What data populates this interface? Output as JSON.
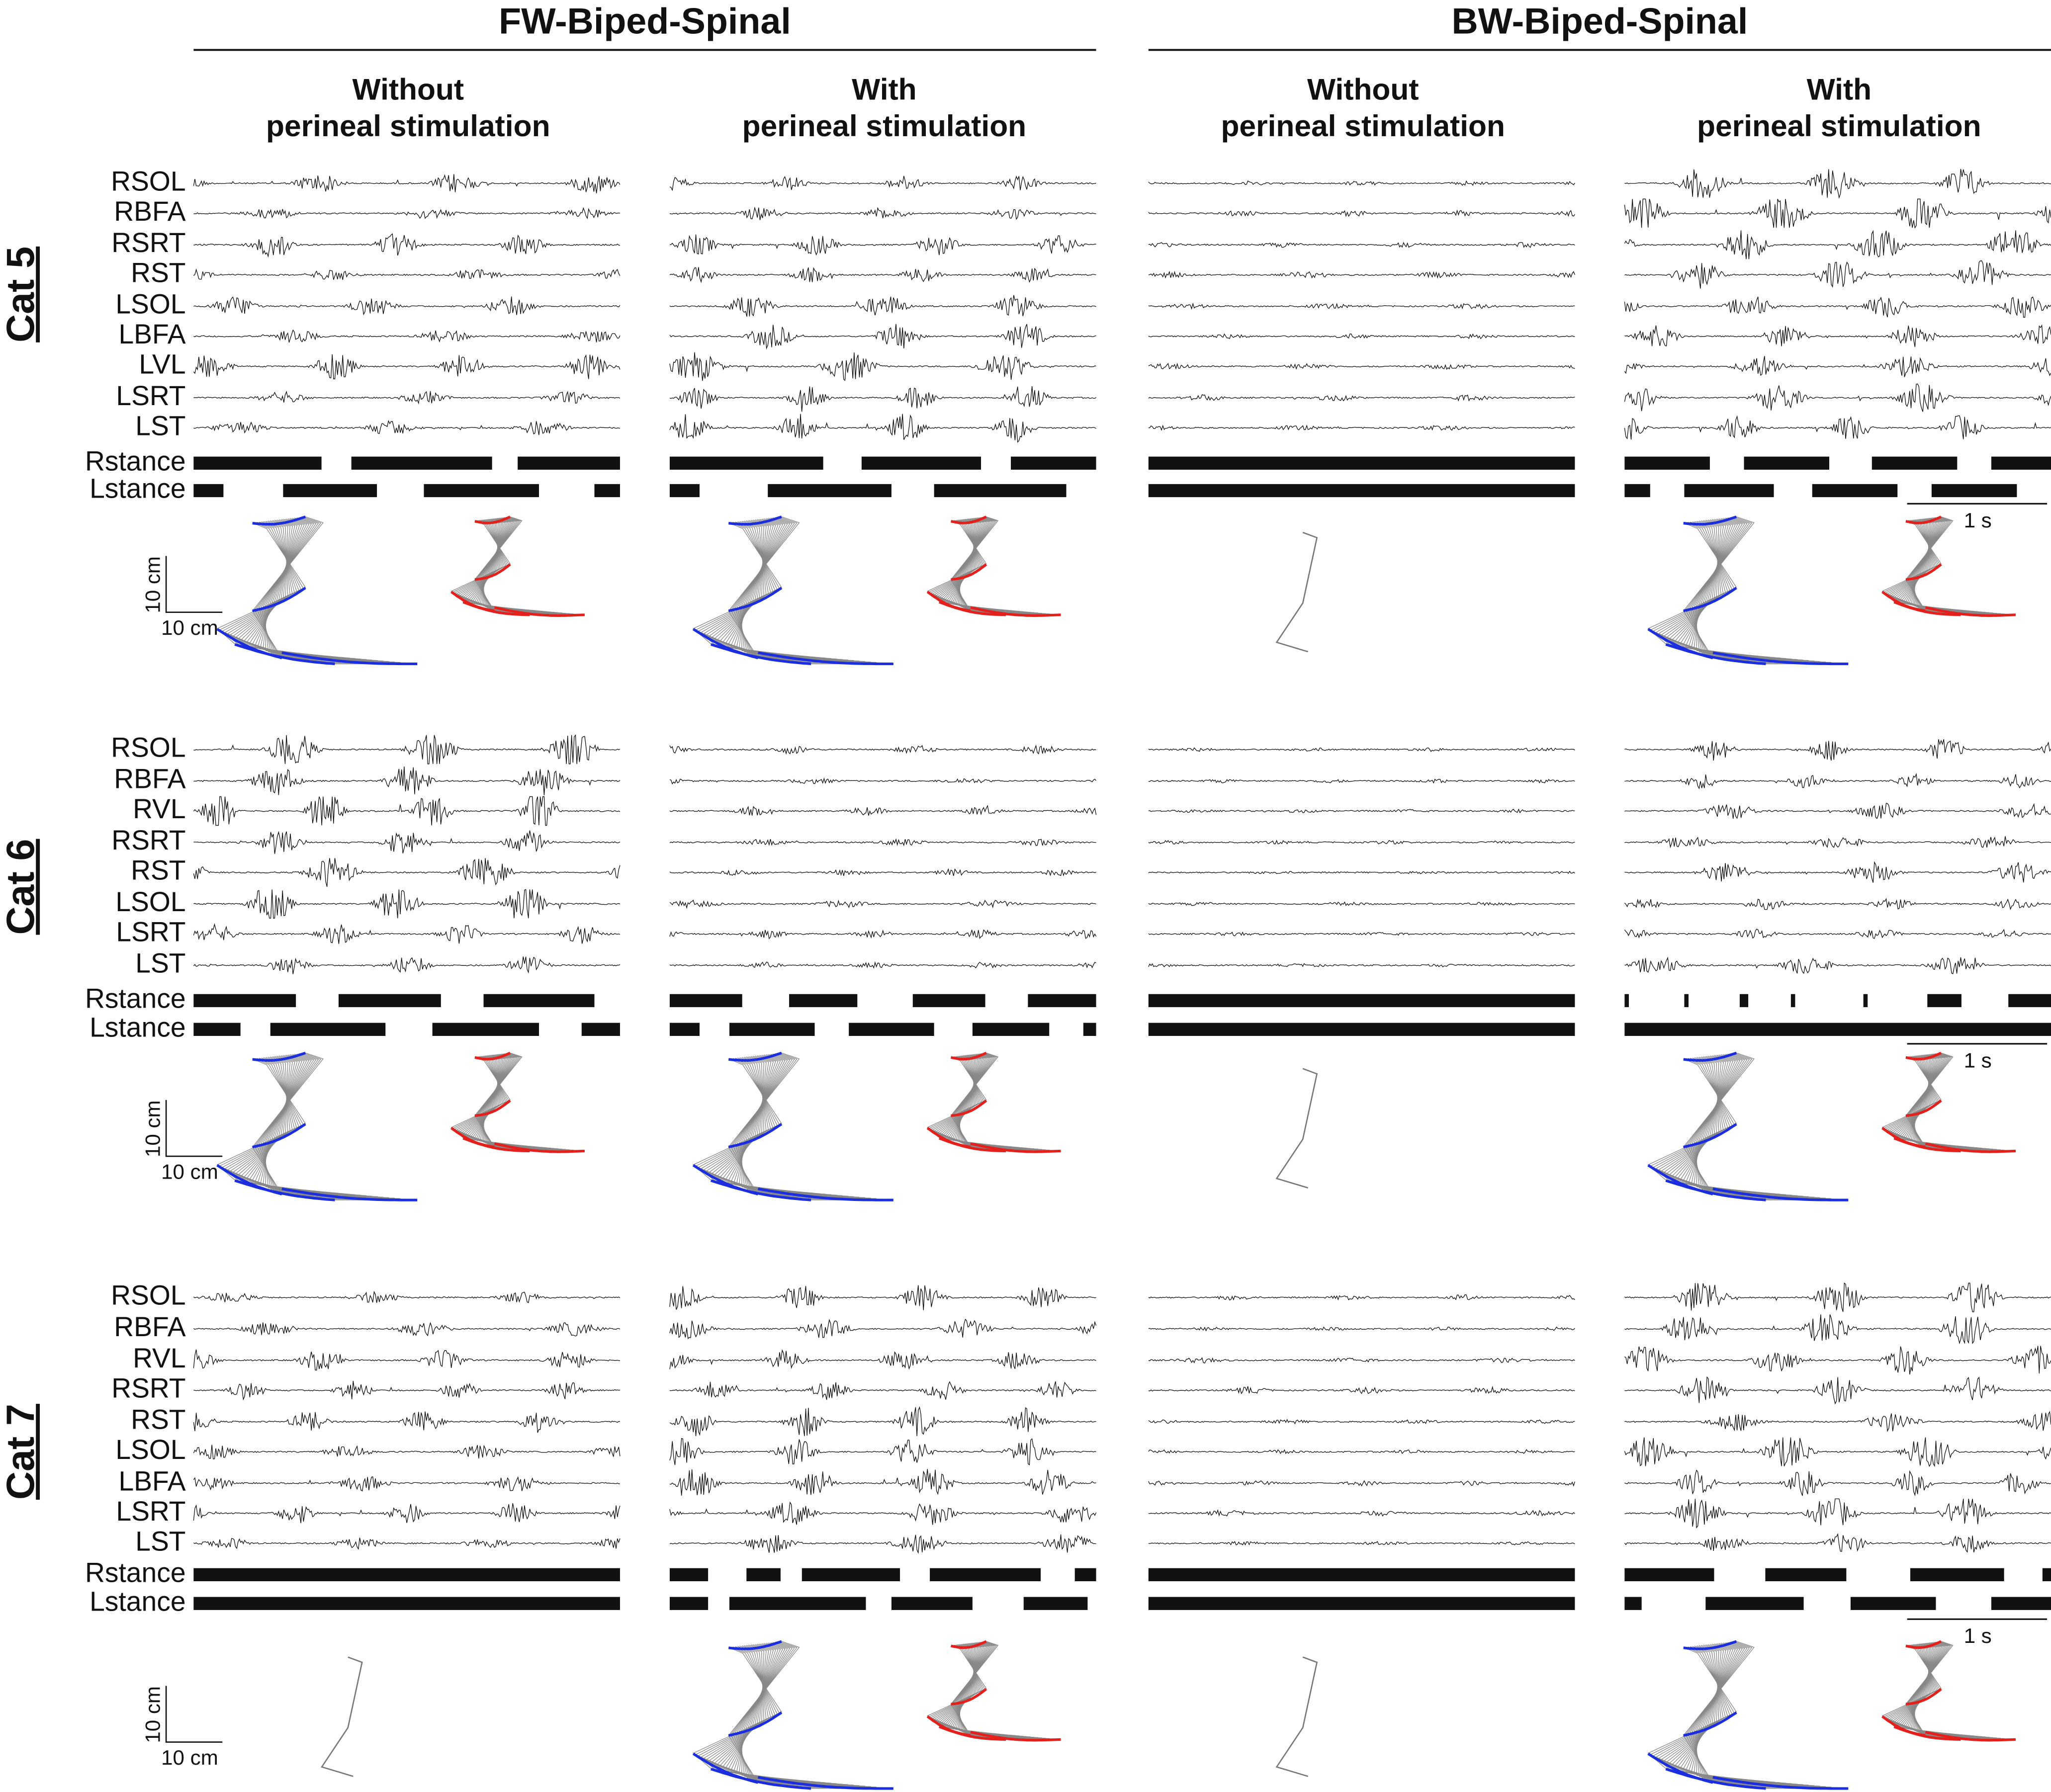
{
  "header": {
    "groups": [
      "FW-Biped-Spinal",
      "BW-Biped-Spinal"
    ],
    "conditions": [
      {
        "line1": "Without",
        "line2": "perineal stimulation"
      },
      {
        "line1": "With",
        "line2": "perineal stimulation"
      }
    ]
  },
  "panels": [
    {
      "label": "Cat 5",
      "muscles": [
        "RSOL",
        "RBFA",
        "RSRT",
        "RST",
        "LSOL",
        "LBFA",
        "LVL",
        "LSRT",
        "LST"
      ],
      "stance": [
        "Rstance",
        "Lstance"
      ]
    },
    {
      "label": "Cat 6",
      "muscles": [
        "RSOL",
        "RBFA",
        "RVL",
        "RSRT",
        "RST",
        "LSOL",
        "LSRT",
        "LST"
      ],
      "stance": [
        "Rstance",
        "Lstance"
      ]
    },
    {
      "label": "Cat 7",
      "muscles": [
        "RSOL",
        "RBFA",
        "RVL",
        "RSRT",
        "RST",
        "LSOL",
        "LBFA",
        "LSRT",
        "LST"
      ],
      "stance": [
        "Rstance",
        "Lstance"
      ]
    }
  ],
  "scale_bars": {
    "distance": "10 cm",
    "time": "1 s"
  }
}
